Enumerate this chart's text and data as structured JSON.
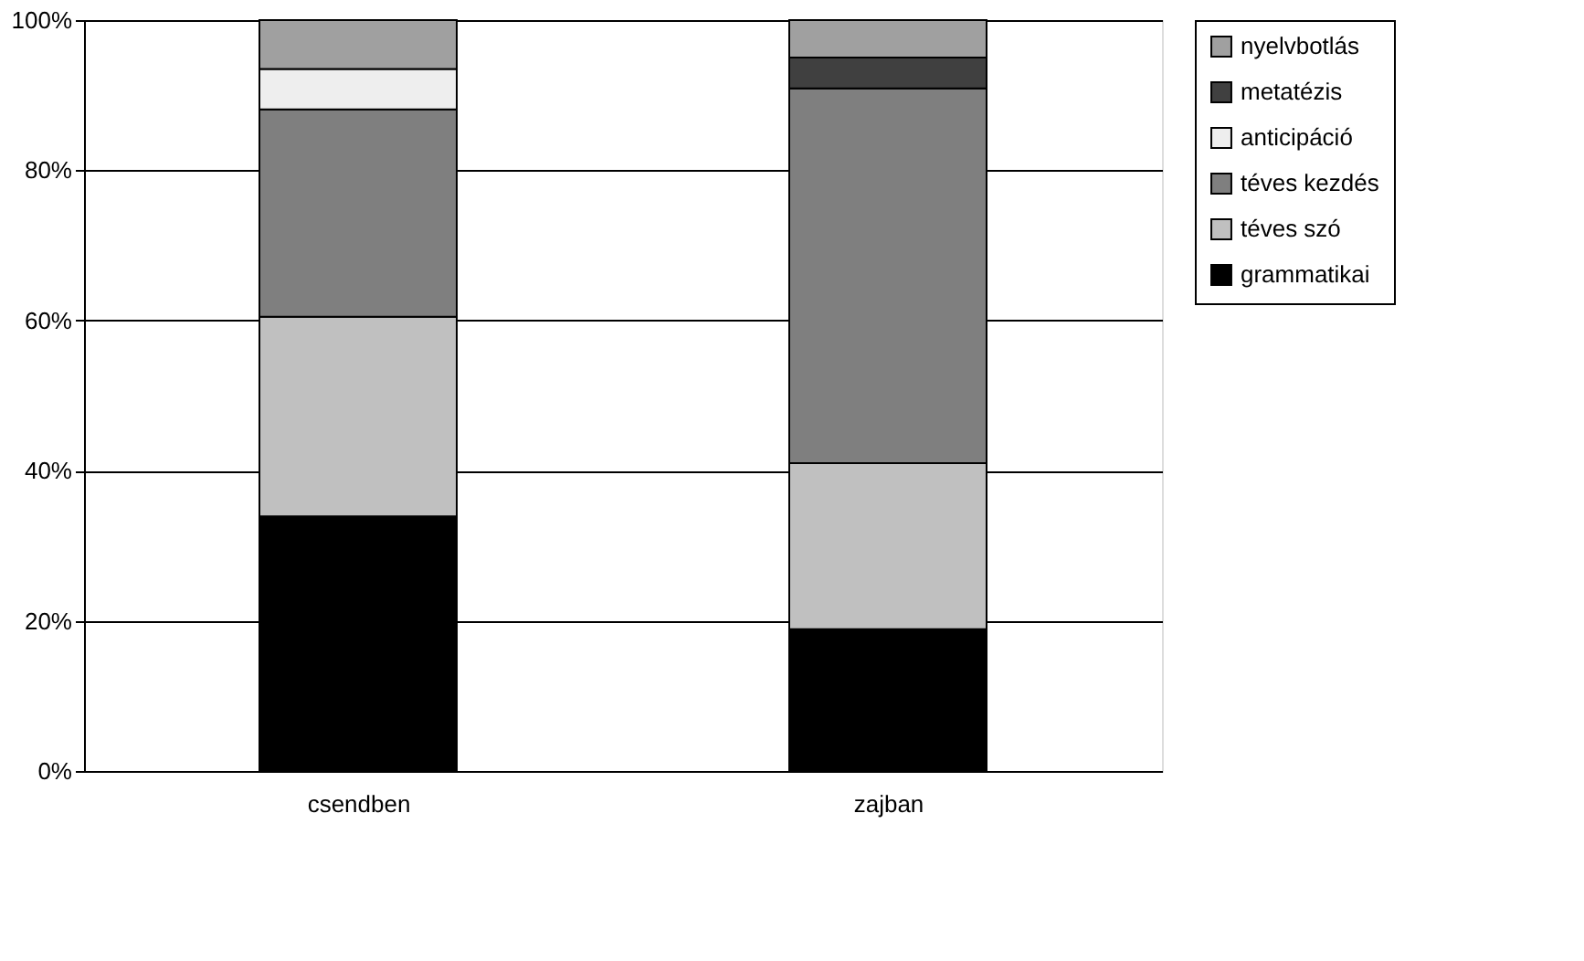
{
  "chart_data": {
    "type": "bar",
    "stacked": true,
    "categories": [
      "csendben",
      "zajban"
    ],
    "series": [
      {
        "name": "grammatikai",
        "color": "#000000",
        "values": [
          33.9,
          18.9
        ]
      },
      {
        "name": "téves szó",
        "color": "#c0c0c0",
        "values": [
          26.6,
          22.1
        ]
      },
      {
        "name": "téves kezdés",
        "color": "#7f7f7f",
        "values": [
          27.6,
          49.9
        ]
      },
      {
        "name": "anticipáció",
        "color": "#eeeeee",
        "values": [
          5.4,
          null
        ]
      },
      {
        "name": "metatézis",
        "color": "#404040",
        "values": [
          null,
          4.1
        ]
      },
      {
        "name": "nyelvbotlás",
        "color": "#a0a0a0",
        "values": [
          6.5,
          5.0
        ]
      }
    ],
    "ylim": [
      0,
      100
    ],
    "yticks": [
      {
        "value": 0,
        "label": "0%"
      },
      {
        "value": 20,
        "label": "20%"
      },
      {
        "value": 40,
        "label": "40%"
      },
      {
        "value": 60,
        "label": "60%"
      },
      {
        "value": 80,
        "label": "80%"
      },
      {
        "value": 100,
        "label": "100%"
      }
    ],
    "grid": "y",
    "legend": "right"
  }
}
